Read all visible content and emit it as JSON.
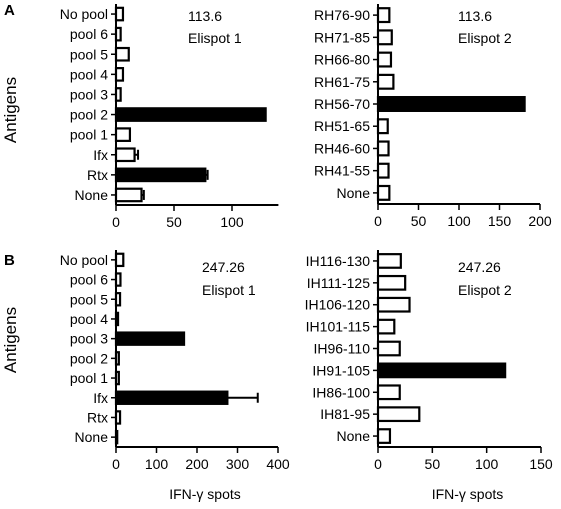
{
  "panel_labels": [
    "A",
    "B"
  ],
  "side_label": "Antigens",
  "chart_data": [
    {
      "type": "bar",
      "orientation": "horizontal",
      "annotation": [
        "113.6",
        "Elispot 1"
      ],
      "categories": [
        "No pool",
        "pool 6",
        "pool 5",
        "pool 4",
        "pool 3",
        "pool 2",
        "pool 1",
        "Ifx",
        "Rtx",
        "None"
      ],
      "values": [
        6,
        4,
        11,
        6,
        4,
        129,
        12,
        16,
        77,
        22
      ],
      "errors": [
        0,
        0,
        0,
        0,
        0,
        0,
        0,
        3,
        2,
        2
      ],
      "filled": [
        false,
        false,
        false,
        false,
        false,
        true,
        false,
        false,
        true,
        false
      ],
      "xlim": [
        0,
        140
      ],
      "xticks": [
        0,
        50,
        100
      ],
      "xlabel": ""
    },
    {
      "type": "bar",
      "orientation": "horizontal",
      "annotation": [
        "113.6",
        "Elispot 2"
      ],
      "categories": [
        "RH76-90",
        "RH71-85",
        "RH66-80",
        "RH61-75",
        "RH56-70",
        "RH51-65",
        "RH46-60",
        "RH41-55",
        "None"
      ],
      "values": [
        14,
        17,
        16,
        19,
        181,
        12,
        13,
        13,
        14
      ],
      "errors": [
        0,
        0,
        0,
        0,
        0,
        0,
        0,
        0,
        0
      ],
      "filled": [
        false,
        false,
        false,
        false,
        true,
        false,
        false,
        false,
        false
      ],
      "xlim": [
        0,
        200
      ],
      "xticks": [
        0,
        50,
        100,
        150,
        200
      ],
      "xlabel": ""
    },
    {
      "type": "bar",
      "orientation": "horizontal",
      "annotation": [
        "247.26",
        "Elispot 1"
      ],
      "categories": [
        "No pool",
        "pool 6",
        "pool 5",
        "pool 4",
        "pool 3",
        "pool 2",
        "pool 1",
        "Ifx",
        "Rtx",
        "None"
      ],
      "values": [
        18,
        11,
        10,
        5,
        168,
        7,
        7,
        275,
        10,
        3
      ],
      "errors": [
        0,
        0,
        0,
        0,
        0,
        0,
        0,
        75,
        0,
        0
      ],
      "filled": [
        false,
        false,
        false,
        false,
        true,
        false,
        false,
        true,
        false,
        false
      ],
      "xlim": [
        0,
        400
      ],
      "xticks": [
        0,
        100,
        200,
        300,
        400
      ],
      "xlabel": "IFN-γ spots"
    },
    {
      "type": "bar",
      "orientation": "horizontal",
      "annotation": [
        "247.26",
        "Elispot 2"
      ],
      "categories": [
        "IH116-130",
        "IH111-125",
        "IH106-120",
        "IH101-115",
        "IH96-110",
        "IH91-105",
        "IH86-100",
        "IH81-95",
        "None"
      ],
      "values": [
        21,
        25,
        29,
        15,
        20,
        117,
        20,
        38,
        11
      ],
      "errors": [
        0,
        0,
        0,
        0,
        0,
        0,
        0,
        0,
        0
      ],
      "filled": [
        false,
        false,
        false,
        false,
        false,
        true,
        false,
        false,
        false
      ],
      "xlim": [
        0,
        150
      ],
      "xticks": [
        0,
        50,
        100,
        150
      ],
      "xlabel": "IFN-γ spots"
    }
  ]
}
